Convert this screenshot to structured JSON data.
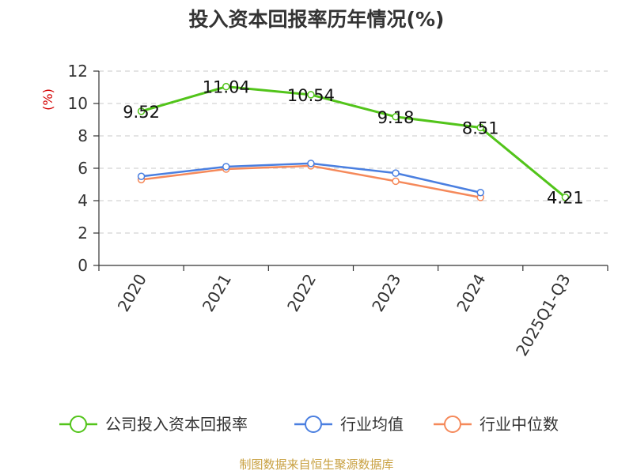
{
  "chart_data": {
    "type": "line",
    "title": "投入资本回报率历年情况(%)",
    "ylabel": "(%)",
    "xlabel": "",
    "categories": [
      "2020",
      "2021",
      "2022",
      "2023",
      "2024",
      "2025Q1-Q3"
    ],
    "ylim": [
      0,
      12
    ],
    "yticks": [
      0,
      2,
      4,
      6,
      8,
      10,
      12
    ],
    "grid": true,
    "legend_position": "bottom",
    "series": [
      {
        "name": "公司投入资本回报率",
        "color": "#52c41a",
        "values": [
          9.52,
          11.04,
          10.54,
          9.18,
          8.51,
          4.21
        ],
        "labels": [
          "9.52",
          "11.04",
          "10.54",
          "9.18",
          "8.51",
          "4.21"
        ]
      },
      {
        "name": "行业均值",
        "color": "#4a7fe0",
        "values": [
          5.5,
          6.1,
          6.3,
          5.7,
          4.5,
          null
        ]
      },
      {
        "name": "行业中位数",
        "color": "#f5895a",
        "values": [
          5.3,
          5.95,
          6.15,
          5.2,
          4.2,
          null
        ]
      }
    ]
  },
  "source": "制图数据来自恒生聚源数据库"
}
